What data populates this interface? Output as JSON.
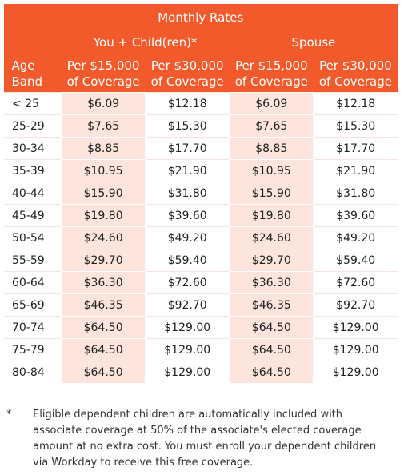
{
  "table": {
    "title": "Monthly Rates",
    "groups": [
      "You + Child(ren)*",
      "Spouse"
    ],
    "age_header": [
      "Age",
      "Band"
    ],
    "col_headers": [
      [
        "Per $15,000",
        "of Coverage"
      ],
      [
        "Per $30,000",
        "of Coverage"
      ],
      [
        "Per $15,000",
        "of Coverage"
      ],
      [
        "Per $30,000",
        "of Coverage"
      ]
    ],
    "rows": [
      [
        "< 25",
        "$6.09",
        "$12.18",
        "$6.09",
        "$12.18"
      ],
      [
        "25-29",
        "$7.65",
        "$15.30",
        "$7.65",
        "$15.30"
      ],
      [
        "30-34",
        "$8.85",
        "$17.70",
        "$8.85",
        "$17.70"
      ],
      [
        "35-39",
        "$10.95",
        "$21.90",
        "$10.95",
        "$21.90"
      ],
      [
        "40-44",
        "$15.90",
        "$31.80",
        "$15.90",
        "$31.80"
      ],
      [
        "45-49",
        "$19.80",
        "$39.60",
        "$19.80",
        "$39.60"
      ],
      [
        "50-54",
        "$24.60",
        "$49.20",
        "$24.60",
        "$49.20"
      ],
      [
        "55-59",
        "$29.70",
        "$59.40",
        "$29.70",
        "$59.40"
      ],
      [
        "60-64",
        "$36.30",
        "$72.60",
        "$36.30",
        "$72.60"
      ],
      [
        "65-69",
        "$46.35",
        "$92.70",
        "$46.35",
        "$92.70"
      ],
      [
        "70-74",
        "$64.50",
        "$129.00",
        "$64.50",
        "$129.00"
      ],
      [
        "75-79",
        "$64.50",
        "$129.00",
        "$64.50",
        "$129.00"
      ],
      [
        "80-84",
        "$64.50",
        "$129.00",
        "$64.50",
        "$129.00"
      ]
    ]
  },
  "footnote": {
    "mark": "*",
    "lines": [
      "Eligible dependent children are automatically included with",
      "associate coverage at 50% of the associate's elected coverage",
      "amount at no extra cost. You must enroll your dependent children",
      "via Workday to receive this free coverage."
    ]
  },
  "colors": {
    "header_bg": "#f25a2c",
    "header_text": "#ffffff",
    "row_tint": "#fde4dc",
    "row_plain": "#ffffff"
  }
}
